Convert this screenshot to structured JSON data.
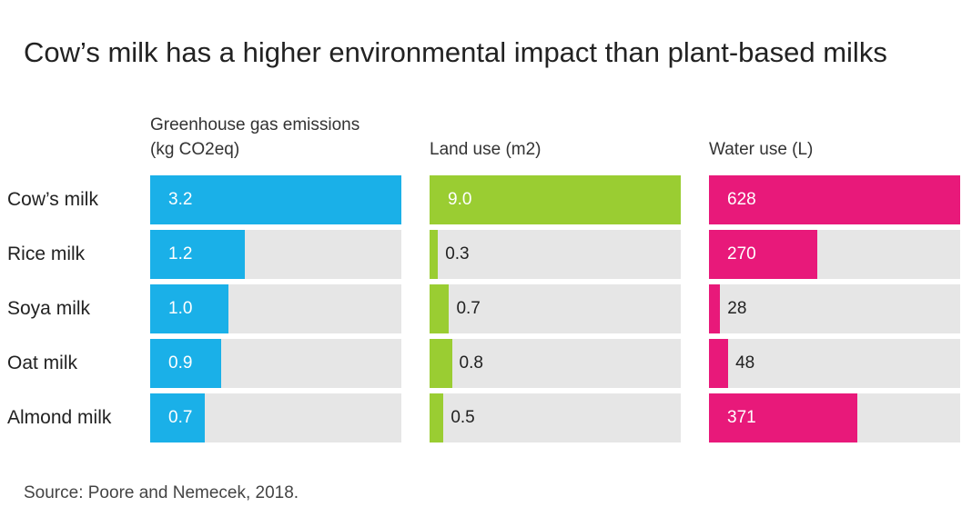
{
  "title": "Cow’s milk has a higher environmental impact than plant-based milks",
  "source": "Source: Poore and Nemecek, 2018.",
  "colors": {
    "emissions": "#1ab0e8",
    "land": "#9acd32",
    "water": "#e8197a",
    "track": "#e6e6e6"
  },
  "chart_data": {
    "type": "bar",
    "orientation": "horizontal",
    "title": "Cow’s milk has a higher environmental impact than plant-based milks",
    "categories": [
      "Cow’s milk",
      "Rice milk",
      "Soya milk",
      "Oat milk",
      "Almond milk"
    ],
    "panels": [
      {
        "header_lines": [
          "Greenhouse gas emissions",
          "(kg CO2eq)"
        ],
        "unit": "kg CO2eq",
        "values": [
          3.2,
          1.2,
          1.0,
          0.9,
          0.7
        ],
        "labels": [
          "3.2",
          "1.2",
          "1.0",
          "0.9",
          "0.7"
        ],
        "max": 3.2,
        "color": "#1ab0e8"
      },
      {
        "header_lines": [
          "Land use (m2)"
        ],
        "unit": "m2",
        "values": [
          9.0,
          0.3,
          0.7,
          0.8,
          0.5
        ],
        "labels": [
          "9.0",
          "0.3",
          "0.7",
          "0.8",
          "0.5"
        ],
        "max": 9.0,
        "color": "#9acd32"
      },
      {
        "header_lines": [
          "Water use (L)"
        ],
        "unit": "L",
        "values": [
          628,
          270,
          28,
          48,
          371
        ],
        "labels": [
          "628",
          "270",
          "28",
          "48",
          "371"
        ],
        "max": 628,
        "color": "#e8197a"
      }
    ],
    "legend": "none",
    "grid": false
  }
}
